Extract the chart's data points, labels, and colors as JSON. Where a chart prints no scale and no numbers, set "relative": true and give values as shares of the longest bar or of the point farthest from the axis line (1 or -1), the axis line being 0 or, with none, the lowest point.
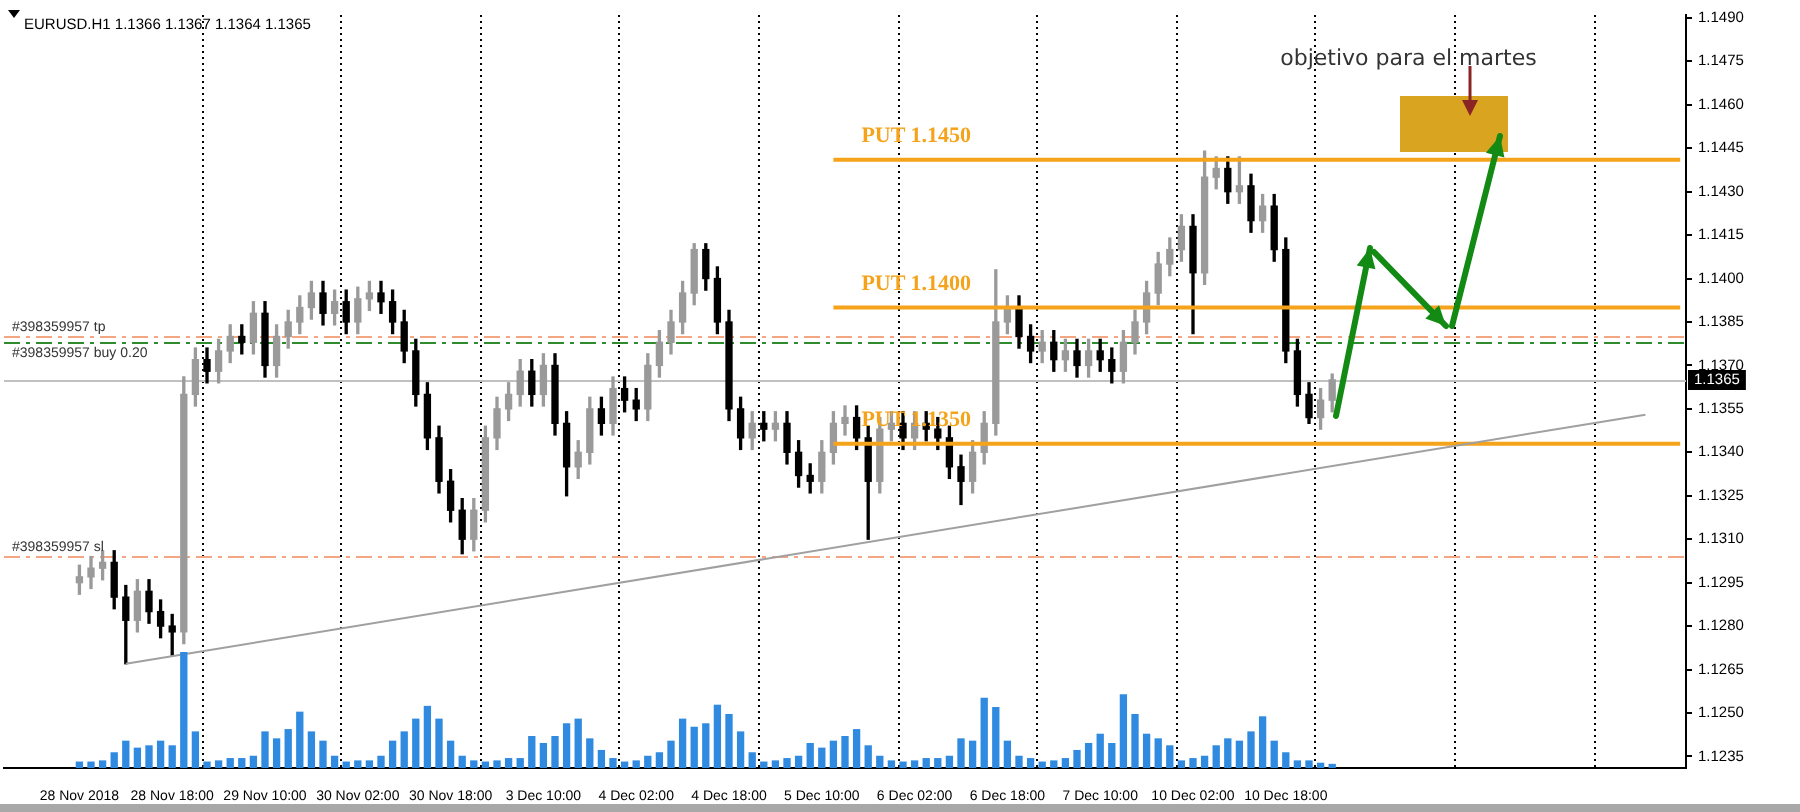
{
  "chart_data": [
    {
      "type": "candlestick",
      "title": "EURUSD.H1 1.1366 1.1367 1.1364 1.1365",
      "categories": [
        null,
        null,
        null,
        null,
        null,
        null,
        "28 Nov 2018",
        null,
        null,
        null,
        null,
        null,
        null,
        null,
        "28 Nov 18:00",
        null,
        null,
        null,
        null,
        null,
        null,
        null,
        "29 Nov 10:00",
        null,
        null,
        null,
        null,
        null,
        null,
        null,
        "30 Nov 02:00",
        null,
        null,
        null,
        null,
        null,
        null,
        null,
        "30 Nov 18:00",
        null,
        null,
        null,
        null,
        null,
        null,
        null,
        "3 Dec 10:00",
        null,
        null,
        null,
        null,
        null,
        null,
        null,
        "4 Dec 02:00",
        null,
        null,
        null,
        null,
        null,
        null,
        null,
        "4 Dec 18:00",
        null,
        null,
        null,
        null,
        null,
        null,
        null,
        "5 Dec 10:00",
        null,
        null,
        null,
        null,
        null,
        null,
        null,
        "6 Dec 02:00",
        null,
        null,
        null,
        null,
        null,
        null,
        null,
        "6 Dec 18:00",
        null,
        null,
        null,
        null,
        null,
        null,
        null,
        "7 Dec 10:00",
        null,
        null,
        null,
        null,
        null,
        null,
        null,
        "10 Dec 02:00",
        null,
        null,
        null,
        null,
        null,
        null,
        null,
        "10 Dec 18:00",
        null,
        null,
        null,
        null,
        null,
        null,
        null,
        null,
        null,
        null,
        null,
        null,
        null,
        null,
        null,
        null,
        null,
        null,
        null,
        null,
        null,
        null,
        null,
        null,
        null,
        null,
        null,
        null,
        null,
        null,
        null,
        null,
        null,
        null
      ],
      "ohlc": [
        null,
        null,
        null,
        null,
        null,
        null,
        [
          1.1295,
          1.1301,
          1.1291,
          1.1297
        ],
        [
          1.1297,
          1.1304,
          1.1293,
          1.13
        ],
        [
          1.13,
          1.1306,
          1.1296,
          1.1302
        ],
        [
          1.1302,
          1.1306,
          1.1286,
          1.129
        ],
        [
          1.129,
          1.1294,
          1.1267,
          1.1282
        ],
        [
          1.1282,
          1.1296,
          1.1278,
          1.1292
        ],
        [
          1.1292,
          1.1296,
          1.1281,
          1.1285
        ],
        [
          1.1285,
          1.1289,
          1.1276,
          1.128
        ],
        [
          1.128,
          1.1284,
          1.127,
          1.1278
        ],
        [
          1.1278,
          1.1366,
          1.1274,
          1.136
        ],
        [
          1.136,
          1.1376,
          1.1356,
          1.1372
        ],
        [
          1.1372,
          1.1376,
          1.1364,
          1.1368
        ],
        [
          1.1368,
          1.1379,
          1.1364,
          1.1375
        ],
        [
          1.1375,
          1.1384,
          1.1371,
          1.138
        ],
        [
          1.138,
          1.1384,
          1.1374,
          1.1378
        ],
        [
          1.1378,
          1.1392,
          1.1374,
          1.1388
        ],
        [
          1.1388,
          1.1392,
          1.1366,
          1.137
        ],
        [
          1.137,
          1.1384,
          1.1366,
          1.138
        ],
        [
          1.138,
          1.1389,
          1.1376,
          1.1385
        ],
        [
          1.1385,
          1.1394,
          1.1381,
          1.139
        ],
        [
          1.139,
          1.1399,
          1.1386,
          1.1395
        ],
        [
          1.1395,
          1.1399,
          1.1384,
          1.1388
        ],
        [
          1.1388,
          1.1396,
          1.1384,
          1.1392
        ],
        [
          1.1392,
          1.1396,
          1.1381,
          1.1385
        ],
        [
          1.1385,
          1.1397,
          1.1381,
          1.1393
        ],
        [
          1.1393,
          1.1399,
          1.1389,
          1.1395
        ],
        [
          1.1395,
          1.1399,
          1.1388,
          1.1392
        ],
        [
          1.1392,
          1.1396,
          1.1381,
          1.1385
        ],
        [
          1.1385,
          1.1389,
          1.1371,
          1.1375
        ],
        [
          1.1375,
          1.1379,
          1.1356,
          1.136
        ],
        [
          1.136,
          1.1364,
          1.1341,
          1.1345
        ],
        [
          1.1345,
          1.1349,
          1.1326,
          1.133
        ],
        [
          1.133,
          1.1334,
          1.1316,
          1.132
        ],
        [
          1.132,
          1.1324,
          1.1305,
          1.131
        ],
        [
          1.131,
          1.1324,
          1.1306,
          1.132
        ],
        [
          1.132,
          1.1349,
          1.1316,
          1.1345
        ],
        [
          1.1345,
          1.1359,
          1.1341,
          1.1355
        ],
        [
          1.1355,
          1.1364,
          1.1351,
          1.136
        ],
        [
          1.136,
          1.1372,
          1.1356,
          1.1368
        ],
        [
          1.1368,
          1.1372,
          1.1356,
          1.136
        ],
        [
          1.136,
          1.1374,
          1.1356,
          1.137
        ],
        [
          1.137,
          1.1374,
          1.1346,
          1.135
        ],
        [
          1.135,
          1.1354,
          1.1325,
          1.1335
        ],
        [
          1.1335,
          1.1344,
          1.1331,
          1.134
        ],
        [
          1.134,
          1.1359,
          1.1336,
          1.1355
        ],
        [
          1.1355,
          1.1359,
          1.1346,
          1.135
        ],
        [
          1.135,
          1.1366,
          1.1346,
          1.1362
        ],
        [
          1.1362,
          1.1366,
          1.1354,
          1.1358
        ],
        [
          1.1358,
          1.1362,
          1.1351,
          1.1355
        ],
        [
          1.1355,
          1.1374,
          1.1351,
          1.137
        ],
        [
          1.137,
          1.1382,
          1.1366,
          1.1378
        ],
        [
          1.1378,
          1.1389,
          1.1374,
          1.1385
        ],
        [
          1.1385,
          1.1399,
          1.1381,
          1.1395
        ],
        [
          1.1395,
          1.1412,
          1.1391,
          1.141
        ],
        [
          1.141,
          1.1412,
          1.1396,
          1.14
        ],
        [
          1.14,
          1.1404,
          1.1381,
          1.1385
        ],
        [
          1.1385,
          1.1389,
          1.1351,
          1.1355
        ],
        [
          1.1355,
          1.1359,
          1.1341,
          1.1345
        ],
        [
          1.1345,
          1.1354,
          1.1341,
          1.135
        ],
        [
          1.135,
          1.1354,
          1.1344,
          1.1348
        ],
        [
          1.1348,
          1.1354,
          1.1344,
          1.135
        ],
        [
          1.135,
          1.1354,
          1.1336,
          1.134
        ],
        [
          1.134,
          1.1344,
          1.1328,
          1.1332
        ],
        [
          1.1332,
          1.1336,
          1.1326,
          1.133
        ],
        [
          1.133,
          1.1344,
          1.1326,
          1.134
        ],
        [
          1.134,
          1.1354,
          1.1336,
          1.135
        ],
        [
          1.135,
          1.1356,
          1.1346,
          1.1352
        ],
        [
          1.1352,
          1.1356,
          1.1341,
          1.1345
        ],
        [
          1.1345,
          1.1349,
          1.131,
          1.133
        ],
        [
          1.133,
          1.1352,
          1.1326,
          1.1348
        ],
        [
          1.1348,
          1.1354,
          1.1344,
          1.135
        ],
        [
          1.135,
          1.1354,
          1.1341,
          1.1345
        ],
        [
          1.1345,
          1.1354,
          1.1341,
          1.135
        ],
        [
          1.135,
          1.1354,
          1.1344,
          1.1348
        ],
        [
          1.1348,
          1.1352,
          1.1341,
          1.1345
        ],
        [
          1.1345,
          1.1349,
          1.1331,
          1.1335
        ],
        [
          1.1335,
          1.1339,
          1.1322,
          1.133
        ],
        [
          1.133,
          1.1344,
          1.1326,
          1.134
        ],
        [
          1.134,
          1.1354,
          1.1336,
          1.135
        ],
        [
          1.135,
          1.1403,
          1.1346,
          1.1385
        ],
        [
          1.1385,
          1.1394,
          1.1381,
          1.139
        ],
        [
          1.139,
          1.1394,
          1.1376,
          1.138
        ],
        [
          1.138,
          1.1384,
          1.1371,
          1.1375
        ],
        [
          1.1375,
          1.1382,
          1.1371,
          1.1378
        ],
        [
          1.1378,
          1.1382,
          1.1368,
          1.1372
        ],
        [
          1.1372,
          1.1379,
          1.1368,
          1.1375
        ],
        [
          1.1375,
          1.1379,
          1.1366,
          1.137
        ],
        [
          1.137,
          1.1379,
          1.1366,
          1.1375
        ],
        [
          1.1375,
          1.1379,
          1.1368,
          1.1372
        ],
        [
          1.1372,
          1.1376,
          1.1364,
          1.1368
        ],
        [
          1.1368,
          1.1382,
          1.1364,
          1.1378
        ],
        [
          1.1378,
          1.1389,
          1.1374,
          1.1385
        ],
        [
          1.1385,
          1.1399,
          1.1381,
          1.1395
        ],
        [
          1.1395,
          1.1409,
          1.1391,
          1.1405
        ],
        [
          1.1405,
          1.1414,
          1.1401,
          1.141
        ],
        [
          1.141,
          1.1422,
          1.1406,
          1.1418
        ],
        [
          1.1418,
          1.1422,
          1.1381,
          1.1402
        ],
        [
          1.1402,
          1.1444,
          1.1398,
          1.1435
        ],
        [
          1.1435,
          1.1442,
          1.1431,
          1.1438
        ],
        [
          1.1438,
          1.1442,
          1.1426,
          1.143
        ],
        [
          1.143,
          1.1442,
          1.1426,
          1.1432
        ],
        [
          1.1432,
          1.1436,
          1.1416,
          1.142
        ],
        [
          1.142,
          1.1429,
          1.1416,
          1.1425
        ],
        [
          1.1425,
          1.1429,
          1.1406,
          1.141
        ],
        [
          1.141,
          1.1414,
          1.1371,
          1.1375
        ],
        [
          1.1375,
          1.1379,
          1.1356,
          1.136
        ],
        [
          1.136,
          1.1364,
          1.135,
          1.1352
        ],
        [
          1.1352,
          1.1362,
          1.1348,
          1.1358
        ],
        [
          1.1358,
          1.1367,
          1.1354,
          1.1365
        ],
        null,
        null,
        null,
        null,
        null,
        null,
        null,
        null,
        null,
        null,
        null,
        null,
        null,
        null,
        null,
        null,
        null,
        null,
        null,
        null,
        null,
        null,
        null,
        null,
        null,
        null,
        null,
        null,
        null,
        null
      ],
      "colors": [
        null,
        null,
        null,
        null,
        null,
        null,
        "#9a9a9a",
        "#9a9a9a",
        "#9a9a9a",
        "#000000",
        "#000000",
        "#9a9a9a",
        "#000000",
        "#000000",
        "#000000",
        "#9a9a9a",
        "#9a9a9a",
        "#000000",
        "#9a9a9a",
        "#9a9a9a",
        "#000000",
        "#9a9a9a",
        "#000000",
        "#9a9a9a",
        "#9a9a9a",
        "#9a9a9a",
        "#9a9a9a",
        "#000000",
        "#9a9a9a",
        "#000000",
        "#9a9a9a",
        "#9a9a9a",
        "#000000",
        "#000000",
        "#000000",
        "#000000",
        "#000000",
        "#000000",
        "#000000",
        "#000000",
        "#9a9a9a",
        "#9a9a9a",
        "#9a9a9a",
        "#9a9a9a",
        "#9a9a9a",
        "#000000",
        "#9a9a9a",
        "#000000",
        "#000000",
        "#9a9a9a",
        "#9a9a9a",
        "#000000",
        "#9a9a9a",
        "#000000",
        "#000000",
        "#9a9a9a",
        "#9a9a9a",
        "#9a9a9a",
        "#9a9a9a",
        "#9a9a9a",
        "#000000",
        "#000000",
        "#000000",
        "#000000",
        "#9a9a9a",
        "#000000",
        "#9a9a9a",
        "#000000",
        "#000000",
        "#000000",
        "#9a9a9a",
        "#9a9a9a",
        "#9a9a9a",
        "#000000",
        "#000000",
        "#9a9a9a",
        "#9a9a9a",
        "#000000",
        "#9a9a9a",
        "#000000",
        "#000000",
        "#000000",
        "#000000",
        "#9a9a9a",
        "#9a9a9a",
        "#9a9a9a",
        "#9a9a9a",
        "#000000",
        "#000000",
        "#9a9a9a",
        "#000000",
        "#9a9a9a",
        "#000000",
        "#9a9a9a",
        "#000000",
        "#000000",
        "#9a9a9a",
        "#9a9a9a",
        "#9a9a9a",
        "#9a9a9a",
        "#9a9a9a",
        "#9a9a9a",
        "#000000",
        "#9a9a9a",
        "#9a9a9a",
        "#000000",
        "#9a9a9a",
        "#000000",
        "#9a9a9a",
        "#000000",
        "#000000",
        "#000000",
        "#000000",
        "#9a9a9a",
        "#9a9a9a",
        null,
        null,
        null,
        null,
        null,
        null,
        null,
        null,
        null,
        null,
        null,
        null,
        null,
        null,
        null,
        null,
        null,
        null,
        null,
        null,
        null,
        null,
        null,
        null,
        null,
        null,
        null,
        null,
        null,
        null
      ],
      "series": [
        {
          "type": "line",
          "color": "#a0a0a0",
          "values": [
            null,
            null,
            null,
            null,
            null,
            null,
            null,
            null,
            null,
            null,
            1.1267,
            null,
            null,
            null,
            null,
            null,
            null,
            null,
            null,
            null,
            null,
            null,
            null,
            null,
            null,
            null,
            null,
            null,
            null,
            null,
            null,
            null,
            null,
            null,
            null,
            null,
            null,
            null,
            null,
            null,
            null,
            null,
            null,
            null,
            null,
            null,
            null,
            null,
            null,
            null,
            null,
            null,
            null,
            null,
            null,
            null,
            null,
            null,
            null,
            null,
            null,
            null,
            null,
            null,
            null,
            null,
            null,
            null,
            null,
            null,
            null,
            null,
            null,
            null,
            null,
            null,
            null,
            null,
            null,
            null,
            null,
            null,
            null,
            null,
            null,
            null,
            null,
            null,
            null,
            null,
            null,
            null,
            null,
            null,
            null,
            null,
            null,
            null,
            null,
            null,
            null,
            null,
            null,
            null,
            null,
            null,
            null,
            null,
            null,
            null,
            null,
            null,
            null,
            null,
            null,
            null,
            null,
            null,
            null,
            null,
            null,
            null,
            null,
            null,
            null,
            null,
            null,
            null,
            null,
            null,
            null,
            null,
            null,
            null,
            null,
            null,
            null,
            null,
            null,
            null,
            null,
            1.1353,
            null,
            null,
            null
          ]
        },
        {
          "type": "line",
          "name": "PUT 1.1450",
          "color": "#f5a31a",
          "values": [
            null,
            null,
            null,
            null,
            null,
            null,
            null,
            null,
            null,
            null,
            null,
            null,
            null,
            null,
            null,
            null,
            null,
            null,
            null,
            null,
            null,
            null,
            null,
            null,
            null,
            null,
            null,
            null,
            null,
            null,
            null,
            null,
            null,
            null,
            null,
            null,
            null,
            null,
            null,
            null,
            null,
            null,
            null,
            null,
            null,
            null,
            null,
            null,
            null,
            null,
            null,
            null,
            null,
            null,
            null,
            null,
            null,
            null,
            null,
            null,
            null,
            null,
            null,
            null,
            null,
            null,
            null,
            null,
            null,
            null,
            null,
            1.1441,
            null,
            null,
            null,
            null,
            null,
            null,
            null,
            null,
            null,
            null,
            null,
            null,
            null,
            null,
            null,
            null,
            null,
            null,
            null,
            null,
            null,
            null,
            null,
            null,
            null,
            null,
            null,
            null,
            null,
            null,
            null,
            null,
            null,
            null,
            null,
            null,
            null,
            null,
            null,
            null,
            null,
            null,
            null,
            null,
            null,
            null,
            null,
            null,
            null,
            null,
            null,
            null,
            null,
            null,
            null,
            null,
            null,
            null,
            null,
            null,
            null,
            null,
            null,
            null,
            null,
            null,
            null,
            null,
            null,
            null,
            null,
            null,
            1.1441
          ]
        },
        {
          "type": "line",
          "name": "PUT 1.1400",
          "color": "#f5a31a",
          "values": [
            null,
            null,
            null,
            null,
            null,
            null,
            null,
            null,
            null,
            null,
            null,
            null,
            null,
            null,
            null,
            null,
            null,
            null,
            null,
            null,
            null,
            null,
            null,
            null,
            null,
            null,
            null,
            null,
            null,
            null,
            null,
            null,
            null,
            null,
            null,
            null,
            null,
            null,
            null,
            null,
            null,
            null,
            null,
            null,
            null,
            null,
            null,
            null,
            null,
            null,
            null,
            null,
            null,
            null,
            null,
            null,
            null,
            null,
            null,
            null,
            null,
            null,
            null,
            null,
            null,
            null,
            null,
            null,
            null,
            null,
            null,
            1.139,
            null,
            null,
            null,
            null,
            null,
            null,
            null,
            null,
            null,
            null,
            null,
            null,
            null,
            null,
            null,
            null,
            null,
            null,
            null,
            null,
            null,
            null,
            null,
            null,
            null,
            null,
            null,
            null,
            null,
            null,
            null,
            null,
            null,
            null,
            null,
            null,
            null,
            null,
            null,
            null,
            null,
            null,
            null,
            null,
            null,
            null,
            null,
            null,
            null,
            null,
            null,
            null,
            null,
            null,
            null,
            null,
            null,
            null,
            null,
            null,
            null,
            null,
            null,
            null,
            null,
            null,
            null,
            null,
            null,
            null,
            null,
            null,
            1.139
          ]
        },
        {
          "type": "line",
          "name": "PUT 1.1350",
          "color": "#f5a31a",
          "values": [
            null,
            null,
            null,
            null,
            null,
            null,
            null,
            null,
            null,
            null,
            null,
            null,
            null,
            null,
            null,
            null,
            null,
            null,
            null,
            null,
            null,
            null,
            null,
            null,
            null,
            null,
            null,
            null,
            null,
            null,
            null,
            null,
            null,
            null,
            null,
            null,
            null,
            null,
            null,
            null,
            null,
            null,
            null,
            null,
            null,
            null,
            null,
            null,
            null,
            null,
            null,
            null,
            null,
            null,
            null,
            null,
            null,
            null,
            null,
            null,
            null,
            null,
            null,
            null,
            null,
            null,
            null,
            null,
            null,
            null,
            null,
            1.1343,
            null,
            null,
            null,
            null,
            null,
            null,
            null,
            null,
            null,
            null,
            null,
            null,
            null,
            null,
            null,
            null,
            null,
            null,
            null,
            null,
            null,
            null,
            null,
            null,
            null,
            null,
            null,
            null,
            null,
            null,
            null,
            null,
            null,
            null,
            null,
            null,
            null,
            null,
            null,
            null,
            null,
            null,
            null,
            null,
            null,
            null,
            null,
            null,
            null,
            null,
            null,
            null,
            null,
            null,
            null,
            null,
            null,
            null,
            null,
            null,
            null,
            null,
            null,
            null,
            null,
            null,
            null,
            null,
            null,
            null,
            null,
            null,
            1.1343
          ]
        }
      ],
      "ref_lines": [
        {
          "axis": "y",
          "value": 1.138,
          "label": "#398359957 tp",
          "color": "#f4a582",
          "line_style": "dashed"
        },
        {
          "axis": "y",
          "value": 1.1378,
          "label": "#398359957 buy 0.20",
          "color": "#2e8b2e",
          "line_style": "dashed"
        },
        {
          "axis": "y",
          "value": 1.1304,
          "label": "#398359957 sl",
          "color": "#f4a582",
          "line_style": "dashed"
        },
        {
          "axis": "y",
          "value": 1.1365,
          "label": "1.1365",
          "color": "#c0c0c0"
        }
      ],
      "annotations": [
        "objetivo para el martes"
      ],
      "ylim": [
        1.1231,
        1.1491
      ],
      "yticks": [
        1.1235,
        {
          "value": 1.125,
          "label": "1.1250"
        },
        1.1265,
        {
          "value": 1.128,
          "label": "1.1280"
        },
        1.1295,
        {
          "value": 1.131,
          "label": "1.1310"
        },
        1.1325,
        {
          "value": 1.134,
          "label": "1.1340"
        },
        1.1355,
        {
          "value": 1.137,
          "label": "1.1370"
        },
        1.1385,
        {
          "value": 1.14,
          "label": "1.1400"
        },
        1.1415,
        {
          "value": 1.143,
          "label": "1.1430"
        },
        1.1445,
        {
          "value": 1.146,
          "label": "1.1460"
        },
        1.1475,
        {
          "value": 1.149,
          "label": "1.1490"
        }
      ]
    },
    {
      "type": "bar",
      "relative": true,
      "color": "#2f8ae0",
      "categories": [
        null,
        null,
        null,
        null,
        null,
        null,
        null,
        null,
        null,
        null,
        null,
        null,
        null,
        null,
        null,
        null,
        null,
        null,
        null,
        null,
        null,
        null,
        null,
        null,
        null,
        null,
        null,
        null,
        null,
        null,
        null,
        null,
        null,
        null,
        null,
        null,
        null,
        null,
        null,
        null,
        null,
        null,
        null,
        null,
        null,
        null,
        null,
        null,
        null,
        null,
        null,
        null,
        null,
        null,
        null,
        null,
        null,
        null,
        null,
        null,
        null,
        null,
        null,
        null,
        null,
        null,
        null,
        null,
        null,
        null,
        null,
        null,
        null,
        null,
        null,
        null,
        null,
        null,
        null,
        null,
        null,
        null,
        null,
        null,
        null,
        null,
        null,
        null,
        null,
        null,
        null,
        null,
        null,
        null,
        null,
        null,
        null,
        null,
        null,
        null,
        null,
        null,
        null,
        null,
        null,
        null,
        null,
        null,
        null,
        null,
        null,
        null,
        null,
        null,
        null,
        null,
        null,
        null,
        null,
        null,
        null,
        null,
        null,
        null,
        null,
        null,
        null,
        null,
        null,
        null,
        null,
        null,
        null,
        null,
        null,
        null,
        null,
        null,
        null,
        null,
        null,
        null,
        null,
        null,
        null
      ],
      "values": [
        null,
        null,
        null,
        null,
        null,
        null,
        0.05,
        0.05,
        0.06,
        0.13,
        0.23,
        0.17,
        0.19,
        0.23,
        0.19,
        1,
        0.31,
        0.05,
        0.06,
        0.08,
        0.08,
        0.1,
        0.31,
        0.25,
        0.33,
        0.48,
        0.31,
        0.23,
        0.1,
        0.05,
        0.06,
        0.06,
        0.1,
        0.23,
        0.31,
        0.42,
        0.53,
        0.42,
        0.23,
        0.1,
        0.06,
        0.05,
        0.06,
        0.08,
        0.08,
        0.27,
        0.21,
        0.27,
        0.38,
        0.42,
        0.25,
        0.15,
        0.08,
        0.05,
        0.06,
        0.1,
        0.13,
        0.23,
        0.42,
        0.35,
        0.38,
        0.54,
        0.46,
        0.31,
        0.13,
        0.05,
        0.06,
        0.08,
        0.1,
        0.21,
        0.17,
        0.23,
        0.27,
        0.33,
        0.19,
        0.1,
        0.06,
        0.05,
        0.06,
        0.08,
        0.08,
        0.1,
        0.25,
        0.23,
        0.6,
        0.52,
        0.23,
        0.1,
        0.08,
        0.05,
        0.06,
        0.08,
        0.15,
        0.21,
        0.29,
        0.21,
        0.63,
        0.46,
        0.29,
        0.25,
        0.19,
        0.06,
        0.08,
        0.1,
        0.19,
        0.25,
        0.23,
        0.31,
        0.44,
        0.23,
        0.13,
        0.06,
        0.06,
        0.04,
        0.03,
        null,
        null,
        null,
        null,
        null,
        null,
        null,
        null,
        null,
        null,
        null,
        null,
        null,
        null,
        null,
        null,
        null,
        null,
        null,
        null,
        null,
        null,
        null,
        null,
        null,
        null,
        null,
        null,
        null,
        null
      ]
    }
  ]
}
